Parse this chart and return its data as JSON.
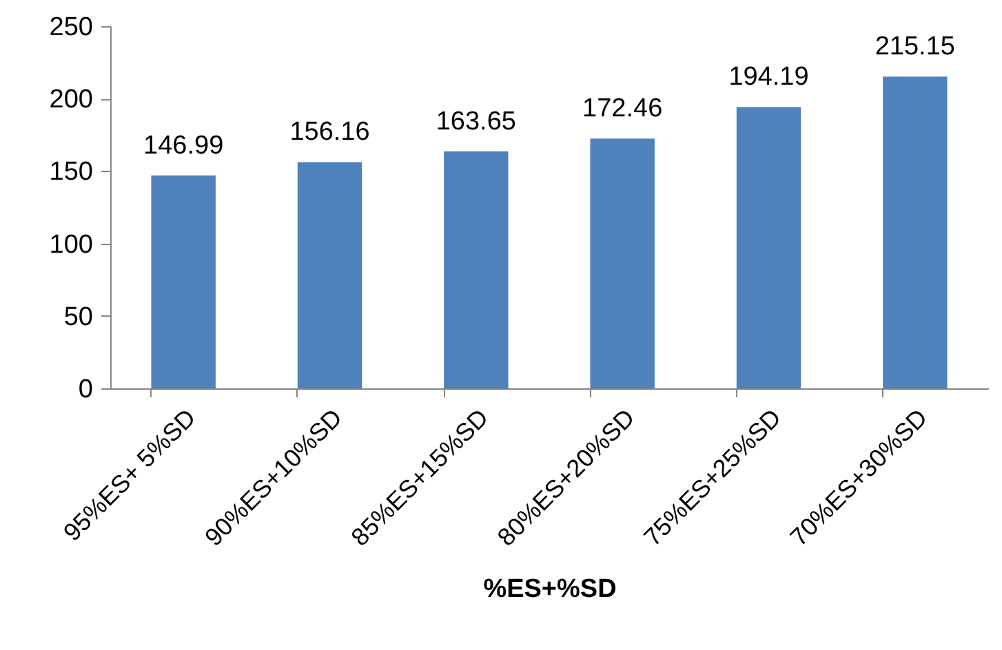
{
  "chart_data": {
    "type": "bar",
    "xlabel": "%ES+%SD",
    "categories": [
      "95%ES+ 5%SD",
      "90%ES+10%SD",
      "85%ES+15%SD",
      "80%ES+20%SD",
      "75%ES+25%SD",
      "70%ES+30%SD"
    ],
    "values": [
      146.99,
      156.16,
      163.65,
      172.46,
      194.19,
      215.15
    ],
    "color": "#4f81bd",
    "ylim": [
      0,
      250
    ],
    "yticks": [
      0,
      50,
      100,
      150,
      200,
      250
    ],
    "data_labels": true
  }
}
